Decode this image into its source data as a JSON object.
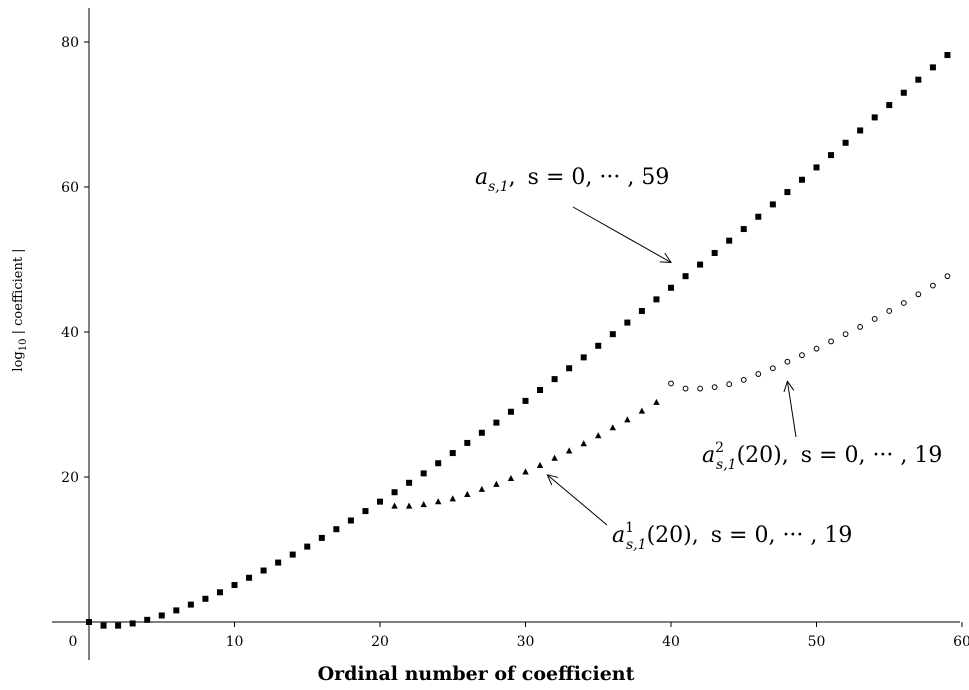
{
  "chart_data": {
    "type": "scatter",
    "xlabel": "Ordinal number of coefficient",
    "ylabel": "log10 | coefficient |",
    "ylabel_parts": {
      "log": "log",
      "sub": "10",
      "rest": " | coefficient |"
    },
    "xlim": [
      0,
      60
    ],
    "ylim": [
      0,
      85
    ],
    "xticks": [
      "0",
      "10",
      "20",
      "30",
      "40",
      "50",
      "60"
    ],
    "yticks": [
      "20",
      "40",
      "60",
      "80"
    ],
    "grid": false,
    "series": [
      {
        "marker": "square",
        "color": "#000000",
        "x": [
          0,
          1,
          2,
          3,
          4,
          5,
          6,
          7,
          8,
          9,
          10,
          11,
          12,
          13,
          14,
          15,
          16,
          17,
          18,
          19,
          20,
          21,
          22,
          23,
          24,
          25,
          26,
          27,
          28,
          29,
          30,
          31,
          32,
          33,
          34,
          35,
          36,
          37,
          38,
          39,
          40,
          41,
          42,
          43,
          44,
          45,
          46,
          47,
          48,
          49,
          50,
          51,
          52,
          53,
          54,
          55,
          56,
          57,
          58,
          59
        ],
        "y": [
          0,
          -0.5,
          -0.5,
          -0.2,
          0.3,
          0.9,
          1.6,
          2.4,
          3.2,
          4.1,
          5.1,
          6.1,
          7.1,
          8.2,
          9.3,
          10.4,
          11.6,
          12.8,
          14.0,
          15.3,
          16.6,
          17.9,
          19.2,
          20.5,
          21.9,
          23.3,
          24.7,
          26.1,
          27.5,
          29.0,
          30.5,
          32.0,
          33.5,
          35.0,
          36.5,
          38.1,
          39.7,
          41.3,
          42.9,
          44.5,
          46.1,
          47.7,
          49.3,
          50.9,
          52.6,
          54.2,
          55.9,
          57.6,
          59.3,
          61.0,
          62.7,
          64.4,
          66.1,
          67.8,
          69.6,
          71.3,
          73.0,
          74.8,
          76.5,
          78.2
        ]
      },
      {
        "marker": "triangle",
        "color": "#000000",
        "x": [
          21,
          22,
          23,
          24,
          25,
          26,
          27,
          28,
          29,
          30,
          31,
          32,
          33,
          34,
          35,
          36,
          37,
          38,
          39
        ],
        "y": [
          16.0,
          16.0,
          16.2,
          16.6,
          17.0,
          17.6,
          18.3,
          19.0,
          19.8,
          20.7,
          21.6,
          22.6,
          23.6,
          24.6,
          25.7,
          26.8,
          27.9,
          29.1,
          30.3
        ]
      },
      {
        "marker": "open-circle",
        "color": "#000000",
        "x": [
          40,
          41,
          42,
          43,
          44,
          45,
          46,
          47,
          48,
          49,
          50,
          51,
          52,
          53,
          54,
          55,
          56,
          57,
          58,
          59
        ],
        "y": [
          32.9,
          32.2,
          32.2,
          32.4,
          32.8,
          33.4,
          34.2,
          35.0,
          35.9,
          36.8,
          37.7,
          38.7,
          39.7,
          40.7,
          41.8,
          42.9,
          44.0,
          45.2,
          46.4,
          47.7
        ]
      }
    ],
    "annotations": [
      {
        "text": "a_{s,1}, s = 0, ···, 59",
        "main": "a",
        "sub": "s,1",
        "sup": "",
        "suffix": ",",
        "range": "s = 0, ··· , 59",
        "arrow_to": [
          40,
          49.6
        ]
      },
      {
        "text": "a^2_{s,1}(20), s = 0, ···, 19",
        "main": "a",
        "sub": "s,1",
        "sup": "2",
        "suffix": "(20),",
        "range": "s = 0, ··· , 19",
        "arrow_to": [
          48,
          33.2
        ]
      },
      {
        "text": "a^1_{s,1}(20), s = 0, ···, 19",
        "main": "a",
        "sub": "s,1",
        "sup": "1",
        "suffix": "(20),",
        "range": "s = 0, ··· , 19",
        "arrow_to": [
          31.5,
          20.3
        ]
      }
    ]
  }
}
